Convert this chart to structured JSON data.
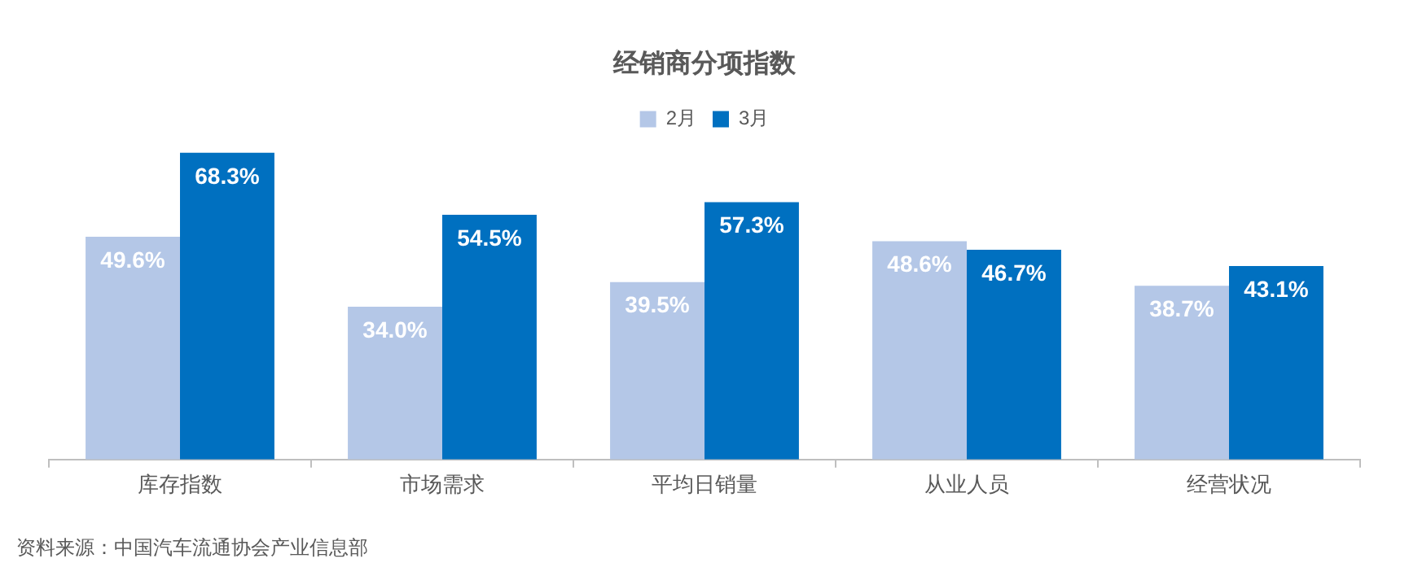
{
  "chart_data": {
    "type": "bar",
    "title": "经销商分项指数",
    "categories": [
      "库存指数",
      "市场需求",
      "平均日销量",
      "从业人员",
      "经营状况"
    ],
    "series": [
      {
        "name": "2月",
        "color": "#b4c7e7",
        "values": [
          49.6,
          34.0,
          39.5,
          48.6,
          38.7
        ],
        "value_labels": [
          "49.6%",
          "34.0%",
          "39.5%",
          "48.6%",
          "38.7%"
        ]
      },
      {
        "name": "3月",
        "color": "#0070c0",
        "values": [
          68.3,
          54.5,
          57.3,
          46.7,
          43.1
        ],
        "value_labels": [
          "68.3%",
          "54.5%",
          "57.3%",
          "46.7%",
          "43.1%"
        ]
      }
    ],
    "legend": "top",
    "annotations": [
      "资料来源：中国汽车流通协会产业信息部"
    ]
  }
}
